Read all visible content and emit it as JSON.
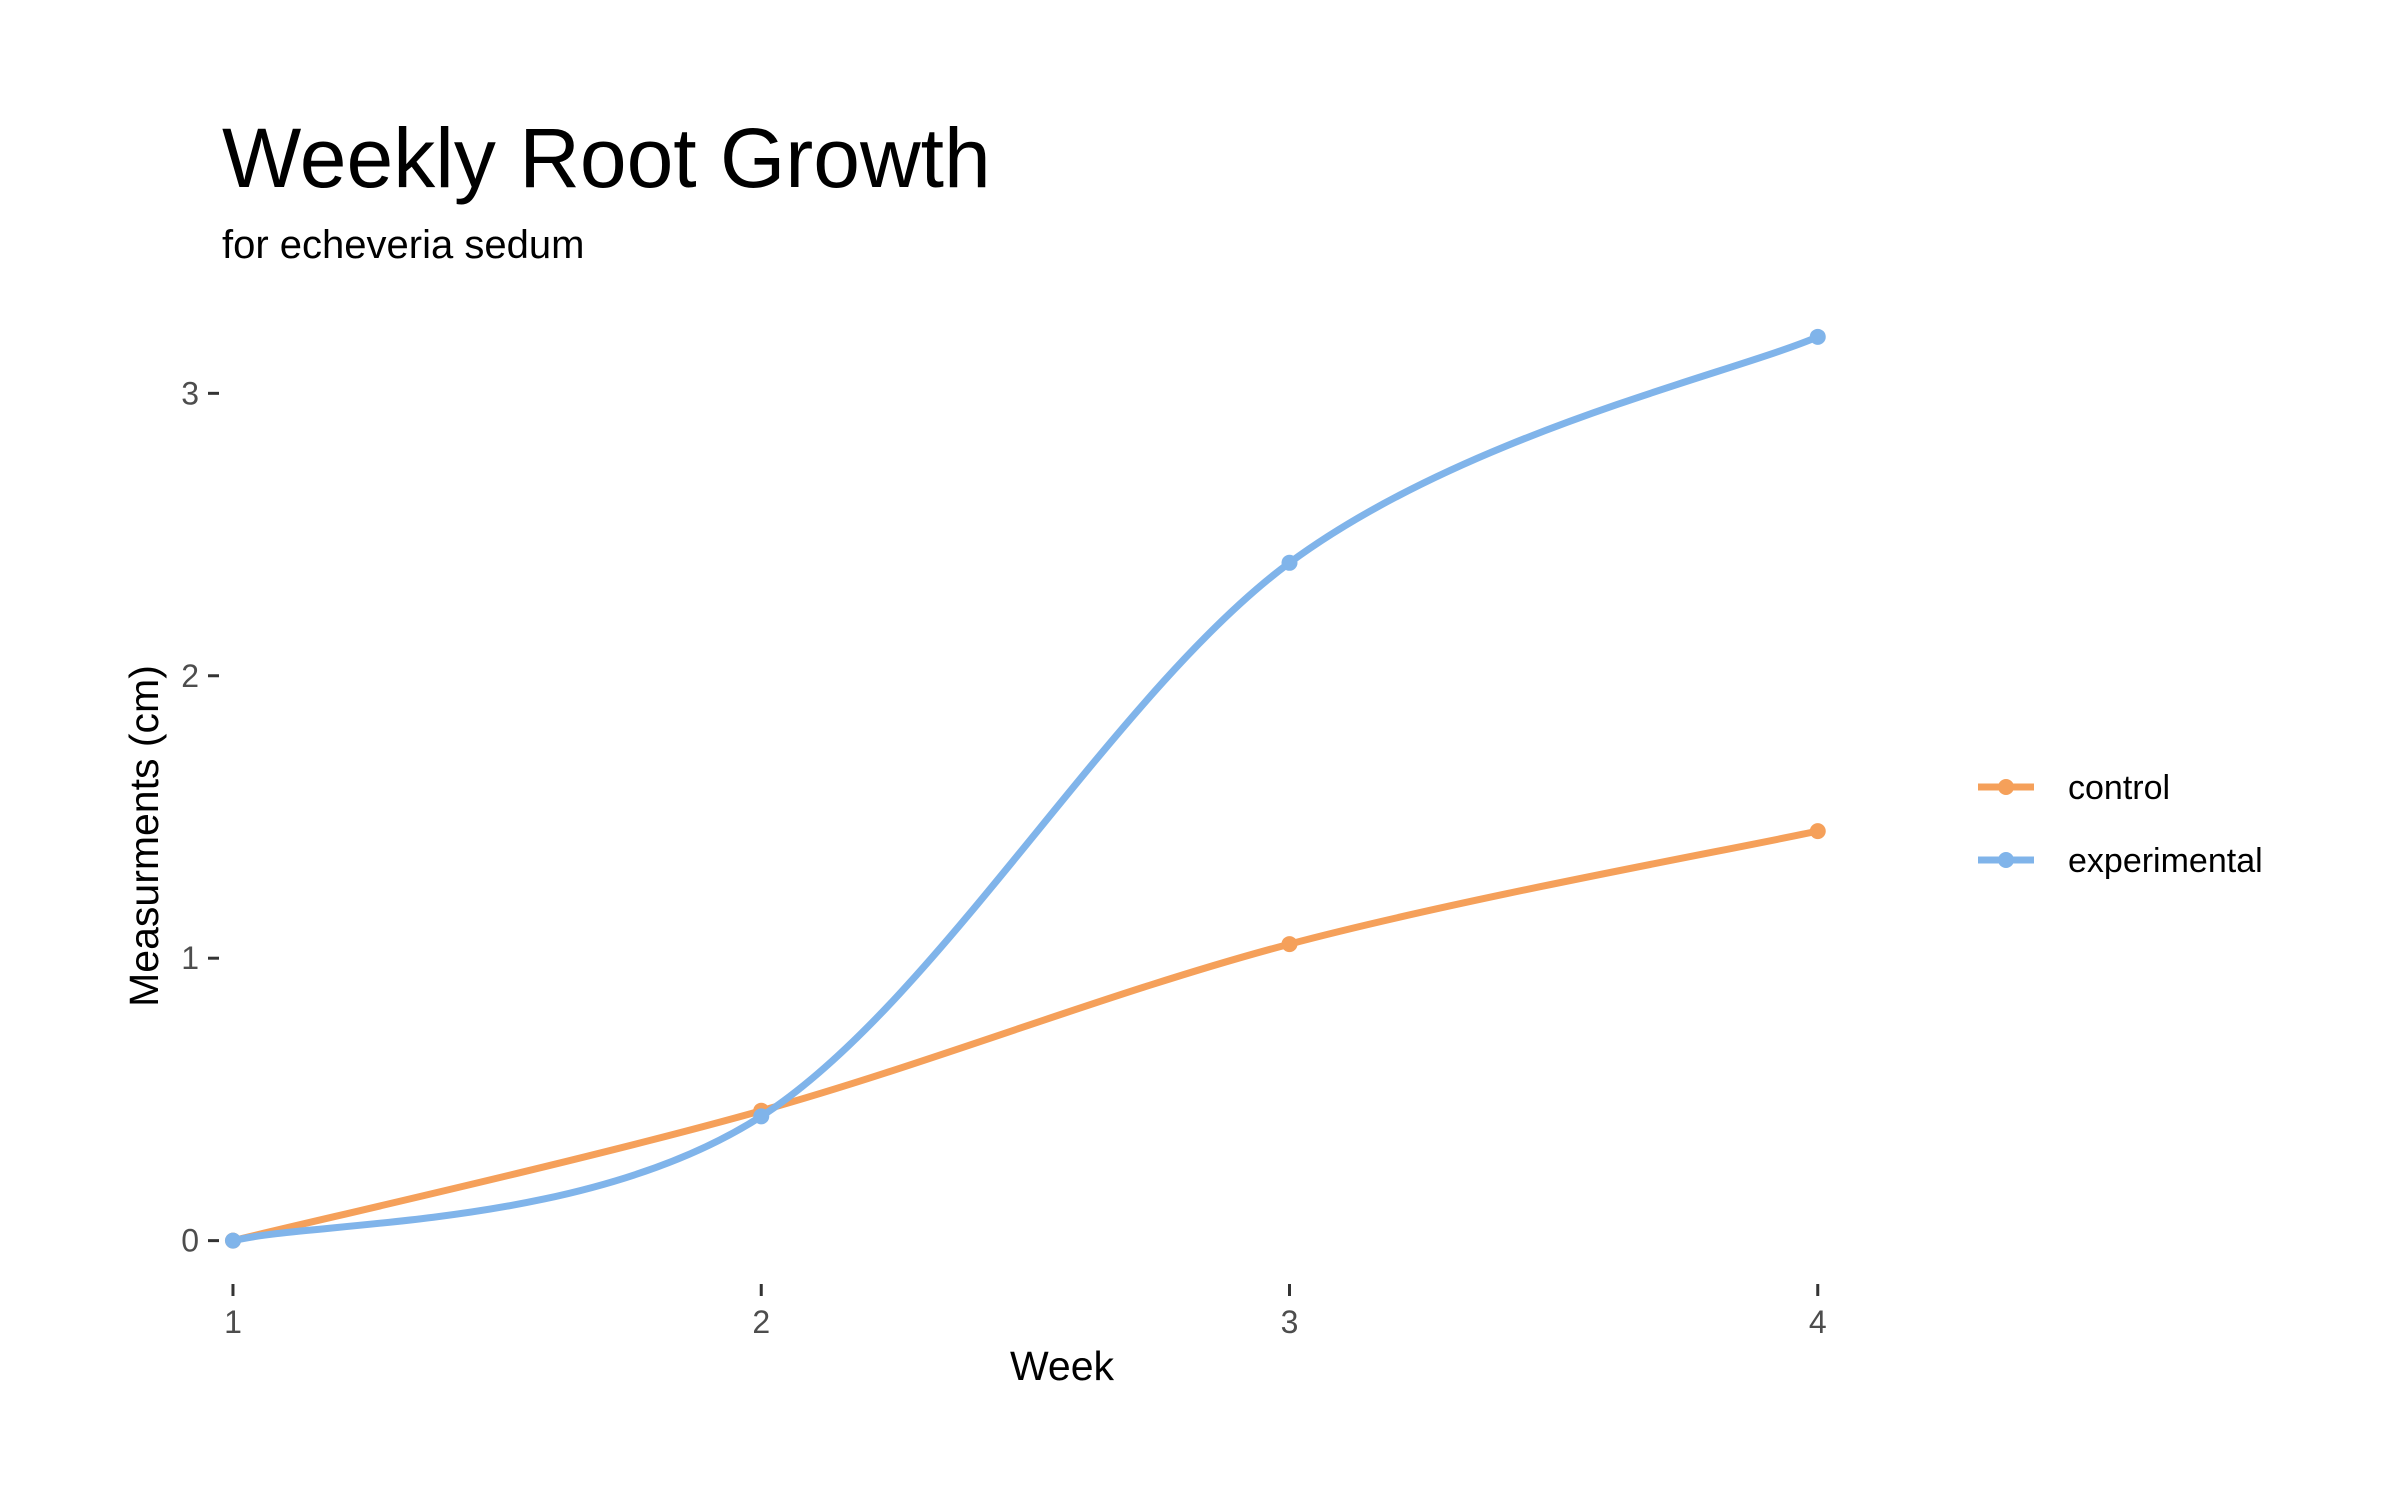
{
  "chart_data": {
    "type": "line",
    "title": "Weekly Root Growth",
    "subtitle": "for  echeveria sedum",
    "xlabel": "Week",
    "ylabel": "Measurments (cm)",
    "x": [
      1,
      2,
      3,
      4
    ],
    "x_ticks": [
      "1",
      "2",
      "3",
      "4"
    ],
    "y_ticks": [
      "0",
      "1",
      "2",
      "3"
    ],
    "xlim": [
      0.93,
      4.15
    ],
    "ylim": [
      -0.15,
      3.38
    ],
    "grid": false,
    "legend_position": "right",
    "series": [
      {
        "name": "control",
        "color": "#F5A05A",
        "values": [
          0,
          0.46,
          1.05,
          1.45
        ]
      },
      {
        "name": "experimental",
        "color": "#80B4EA",
        "values": [
          0,
          0.44,
          2.4,
          3.2
        ]
      }
    ]
  }
}
